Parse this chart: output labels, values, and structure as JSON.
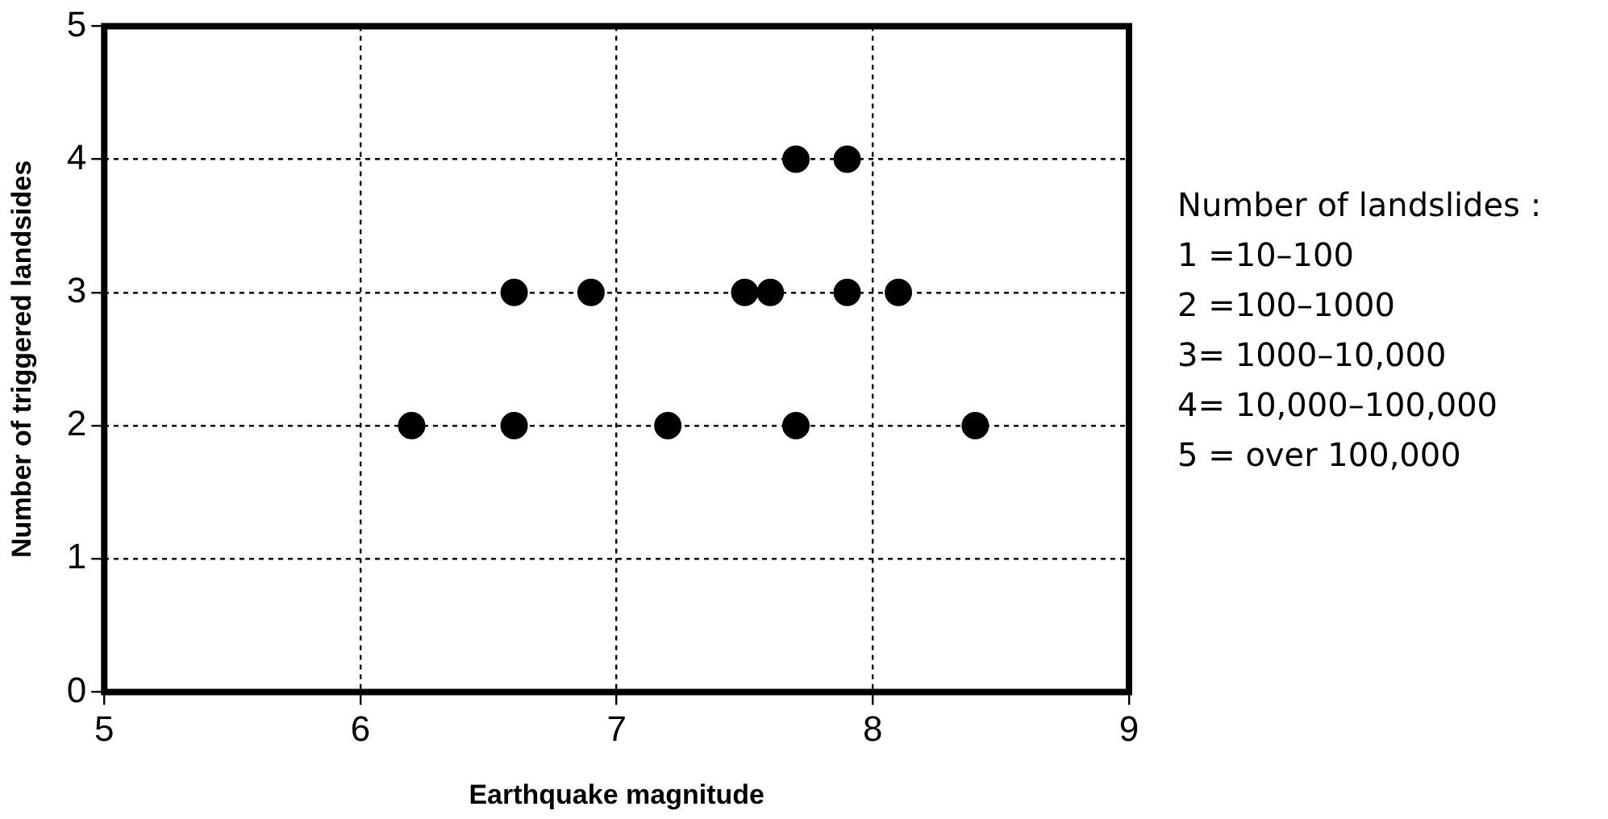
{
  "chart_data": {
    "type": "scatter",
    "xlabel": "Earthquake magnitude",
    "ylabel": "Number of triggered landsides",
    "x": [
      6.2,
      6.6,
      6.6,
      6.9,
      7.2,
      7.5,
      7.6,
      7.7,
      7.7,
      7.9,
      7.9,
      8.1,
      8.4
    ],
    "values": [
      2,
      2,
      3,
      3,
      2,
      3,
      3,
      4,
      2,
      4,
      3,
      3,
      2
    ],
    "color": "#000000",
    "marker": "circle",
    "xlim": [
      5,
      9
    ],
    "xticks": [
      5,
      6,
      7,
      8,
      9
    ],
    "ylim": [
      0,
      5
    ],
    "yticks": [
      0,
      1,
      2,
      3,
      4,
      5
    ],
    "grid": true,
    "annotations": [
      "Number of landslides :",
      "1 =10–100",
      "2 =100–1000",
      "3= 1000–10,000",
      "4= 10,000–100,000",
      "5 = over 100,000"
    ]
  }
}
